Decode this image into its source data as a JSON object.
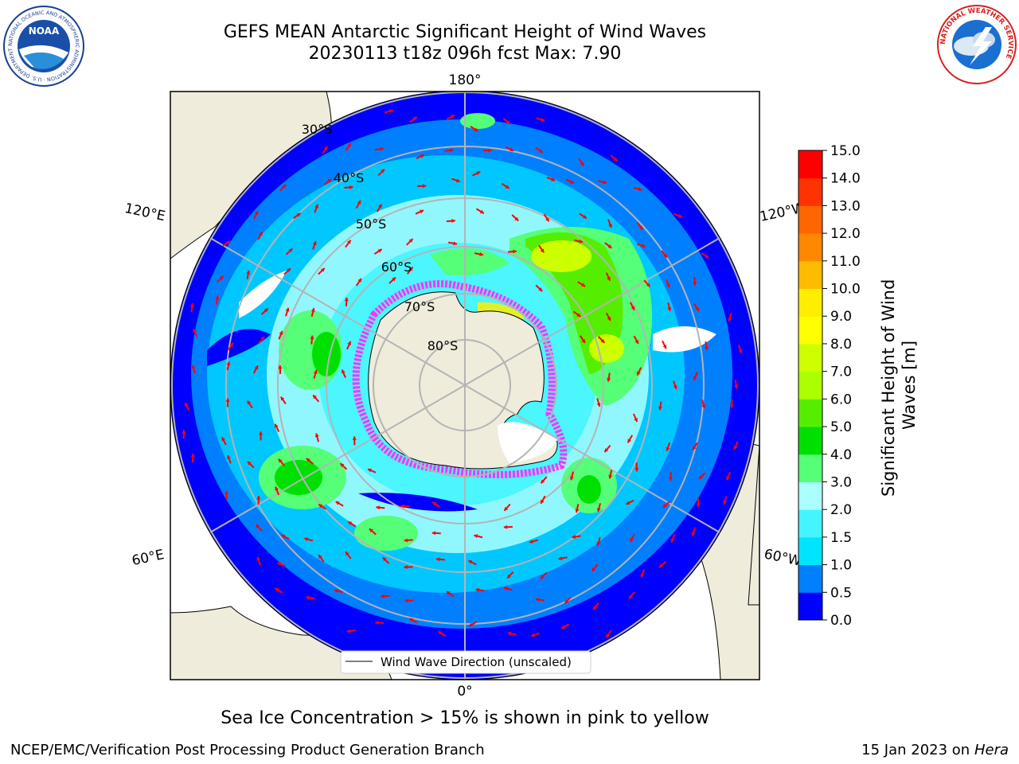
{
  "header": {
    "title_line1": "GEFS MEAN Antarctic Significant Height of Wind Waves",
    "title_line2": "20230113 t18z 096h fcst   Max: 7.90"
  },
  "logos": {
    "noaa": {
      "text": "NOAA",
      "ring_text": "NATIONAL OCEANIC AND ATMOSPHERIC ADMINISTRATION · U.S. DEPARTMENT OF COMMERCE"
    },
    "nws": {
      "ring_text": "NATIONAL WEATHER SERVICE"
    }
  },
  "map": {
    "longitude_labels": [
      "180°",
      "120°E",
      "120°W",
      "60°E",
      "60°W",
      "0°"
    ],
    "latitude_labels": [
      "30°S",
      "40°S",
      "50°S",
      "60°S",
      "70°S",
      "80°S"
    ],
    "legend_label": "Wind Wave Direction (unscaled)",
    "colors": {
      "land": "#efecdc",
      "arrow": "#ff0000",
      "ice": "#ff33ff",
      "grid": "#b4b4b4"
    }
  },
  "colorbar": {
    "label": "Significant Height of Wind Waves [m]",
    "ticks": [
      "0.0",
      "0.5",
      "1.0",
      "1.5",
      "2.0",
      "3.0",
      "4.0",
      "5.0",
      "6.0",
      "7.0",
      "8.0",
      "9.0",
      "10.0",
      "11.0",
      "12.0",
      "13.0",
      "14.0",
      "15.0"
    ],
    "colors": [
      "#0000ff",
      "#0080ff",
      "#00e5ff",
      "#44f5ff",
      "#aaffff",
      "#55ff77",
      "#00e000",
      "#55ee00",
      "#aaff00",
      "#ccff00",
      "#ffff00",
      "#ffee00",
      "#ffbb00",
      "#ff8800",
      "#ff6600",
      "#ff3300",
      "#ff0000"
    ]
  },
  "notes": {
    "sea_ice": "Sea Ice Concentration > 15% is shown in pink to yellow"
  },
  "footer": {
    "left": "NCEP/EMC/Verification Post Processing Product Generation Branch",
    "right_date": "15 Jan 2023 on ",
    "right_host": "Hera"
  }
}
